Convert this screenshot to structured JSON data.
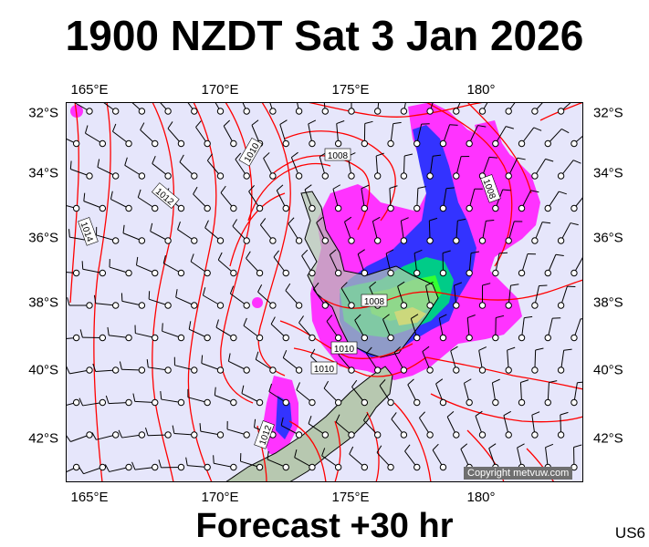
{
  "title": "1900 NZDT Sat 3 Jan 2026",
  "subtitle": "Forecast +30 hr",
  "corner_label": "US6",
  "copyright": "Copyright metvuw.com",
  "lon_labels": [
    "165°E",
    "170°E",
    "175°E",
    "180°"
  ],
  "lat_labels": [
    "32°S",
    "34°S",
    "36°S",
    "38°S",
    "40°S",
    "42°S"
  ],
  "isobar_labels": [
    "1008",
    "1008",
    "1008",
    "1010",
    "1010",
    "1010",
    "1012",
    "1012",
    "1012",
    "1014"
  ],
  "colors": {
    "ocean": "#e6e6fb",
    "isobar": "#ff0000",
    "land": "#b7c8b0",
    "rain_light": "#ff33ff",
    "rain_moderate": "#3333ff",
    "rain_heavy": "#00ff66",
    "rain_extreme": "#ffff00"
  }
}
